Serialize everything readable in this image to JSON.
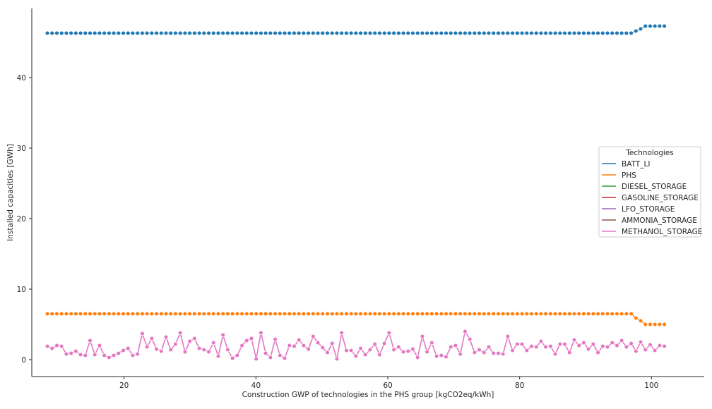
{
  "chart_data": {
    "type": "line",
    "xlabel": "Construction GWP of technologies in the PHS group [kgCO2eq/kWh]",
    "ylabel": "Installed capacities [GWh]",
    "xlim": [
      6.0,
      108.0
    ],
    "ylim": [
      -2.4,
      49.8
    ],
    "xticks": [
      20,
      40,
      60,
      80,
      100
    ],
    "yticks": [
      0,
      10,
      20,
      30,
      40
    ],
    "grid": false,
    "markers": true,
    "legend": {
      "title": "Technologies",
      "position": "right",
      "entries": [
        "BATT_LI",
        "PHS",
        "DIESEL_STORAGE",
        "GASOLINE_STORAGE",
        "LFO_STORAGE",
        "AMMONIA_STORAGE",
        "METHANOL_STORAGE"
      ]
    },
    "x": {
      "start": 8.36,
      "step": 0.72,
      "count": 131
    },
    "series": [
      {
        "name": "BATT_LI",
        "color": "#1f77b4",
        "constant": 46.3,
        "tail": [
          46.6,
          46.9,
          47.3,
          47.3,
          47.3,
          47.3,
          47.3
        ]
      },
      {
        "name": "PHS",
        "color": "#ff7f0e",
        "constant": 6.5,
        "tail": [
          5.9,
          5.5,
          5.0,
          5.0,
          5.0,
          5.0,
          5.0
        ]
      },
      {
        "name": "DIESEL_STORAGE",
        "color": "#2ca02c",
        "values": []
      },
      {
        "name": "GASOLINE_STORAGE",
        "color": "#d62728",
        "values": []
      },
      {
        "name": "LFO_STORAGE",
        "color": "#9467bd",
        "values": []
      },
      {
        "name": "AMMONIA_STORAGE",
        "color": "#8c564b",
        "values": []
      },
      {
        "name": "METHANOL_STORAGE",
        "color": "#e377c2",
        "values": [
          1.9,
          1.6,
          2.0,
          1.9,
          0.8,
          0.9,
          1.2,
          0.7,
          0.6,
          2.7,
          0.7,
          2.0,
          0.6,
          0.3,
          0.6,
          0.9,
          1.3,
          1.6,
          0.6,
          0.8,
          3.7,
          1.8,
          3.0,
          1.5,
          1.2,
          3.2,
          1.4,
          2.2,
          3.8,
          1.1,
          2.6,
          3.0,
          1.6,
          1.4,
          1.1,
          2.4,
          0.5,
          3.5,
          1.4,
          0.2,
          0.6,
          2.0,
          2.7,
          3.0,
          0.1,
          3.8,
          0.9,
          0.3,
          2.9,
          0.6,
          0.2,
          2.0,
          1.9,
          2.8,
          2.0,
          1.5,
          3.3,
          2.4,
          1.7,
          1.0,
          2.3,
          0.1,
          3.8,
          1.3,
          1.3,
          0.5,
          1.6,
          0.7,
          1.4,
          2.2,
          0.7,
          2.3,
          3.8,
          1.4,
          1.8,
          1.1,
          1.2,
          1.5,
          0.3,
          3.3,
          1.1,
          2.4,
          0.5,
          0.6,
          0.4,
          1.8,
          2.0,
          0.8,
          4.0,
          2.9,
          1.0,
          1.4,
          1.0,
          1.8,
          0.9,
          0.9,
          0.8,
          3.3,
          1.3,
          2.2,
          2.2,
          1.3,
          1.9,
          1.8,
          2.6,
          1.8,
          1.9,
          0.8,
          2.2,
          2.2,
          1.0,
          2.8,
          2.0,
          2.4,
          1.5,
          2.2,
          1.0,
          1.9,
          1.8,
          2.4,
          2.0,
          2.7,
          1.8,
          2.3,
          1.2,
          2.5,
          1.4,
          2.1,
          1.3,
          2.0,
          1.9
        ]
      }
    ]
  }
}
